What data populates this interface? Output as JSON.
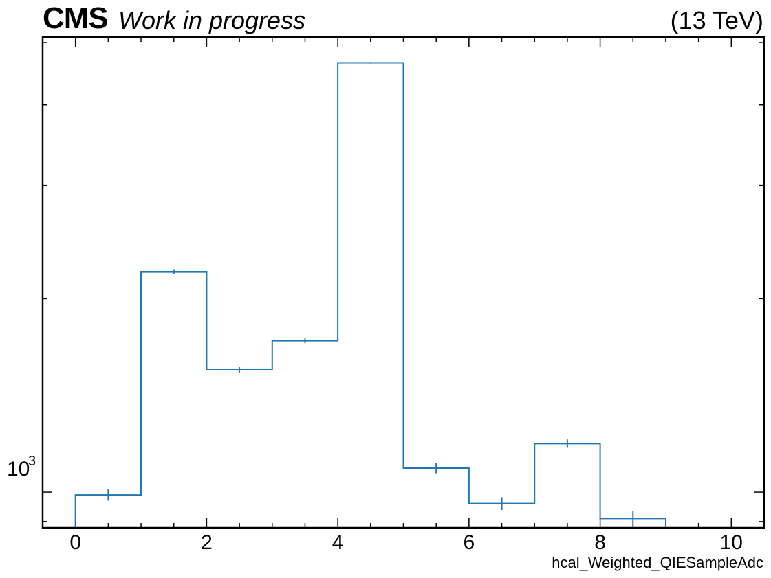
{
  "header": {
    "experiment": "CMS",
    "status": "Work in progress",
    "energy": "(13 TeV)"
  },
  "chart_data": {
    "type": "histogram",
    "xlabel": "hcal_Weighted_QIESampleAdc",
    "ylabel": "",
    "yscale": "log",
    "xlim": [
      -0.5,
      10.5
    ],
    "ylim": [
      880,
      5100
    ],
    "x_ticks": [
      0,
      2,
      4,
      6,
      8,
      10
    ],
    "x_tick_labels": [
      "0",
      "2",
      "4",
      "6",
      "8",
      "10"
    ],
    "y_tick_label": "10",
    "y_tick_exponent": "3",
    "bin_edges": [
      0,
      1,
      2,
      3,
      4,
      5,
      6,
      7,
      8,
      9
    ],
    "values": [
      990,
      2200,
      1550,
      1720,
      4650,
      1090,
      960,
      1190,
      910
    ],
    "errors": [
      20,
      17,
      15,
      15,
      13,
      20,
      22,
      18,
      24
    ],
    "color": "#1f77b4",
    "grid": false,
    "legend": "none"
  }
}
